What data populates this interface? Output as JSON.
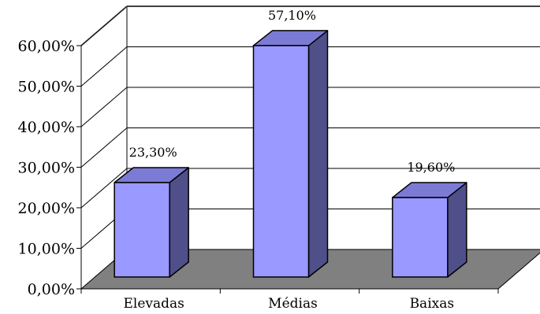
{
  "chart_data": {
    "type": "bar",
    "three_d": true,
    "categories": [
      "Elevadas",
      "Médias",
      "Baixas"
    ],
    "values": [
      23.3,
      57.1,
      19.6
    ],
    "data_labels": [
      "23,30%",
      "57,10%",
      "19,60%"
    ],
    "y_ticks": [
      0,
      10,
      20,
      30,
      40,
      50,
      60
    ],
    "y_tick_labels": [
      "0,00%",
      "10,00%",
      "20,00%",
      "30,00%",
      "40,00%",
      "50,00%",
      "60,00%"
    ],
    "ylim": [
      0,
      60
    ],
    "grid": true,
    "legend": "none",
    "colors": {
      "bar_front": "#9999ff",
      "bar_top": "#7b7bd6",
      "bar_side": "#4f4f8a",
      "floor": "#808080",
      "grid": "#000000",
      "wall_edge": "#808080"
    }
  }
}
